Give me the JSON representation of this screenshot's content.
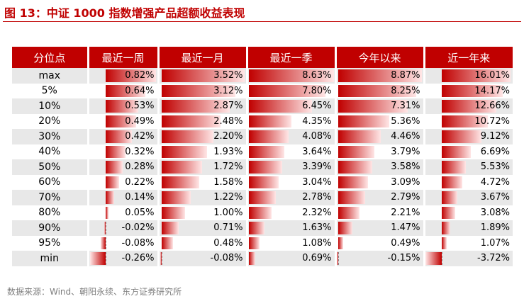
{
  "figure": {
    "title": "图 13：中证 1000 指数增强产品超额收益表现",
    "source": "数据来源：Wind、朝阳永续、东方证券研究所"
  },
  "table": {
    "corner_header": "分位点",
    "columns": [
      {
        "key": "week",
        "header": "最近一周",
        "min": -0.26,
        "max": 0.82
      },
      {
        "key": "month",
        "header": "最近一月",
        "min": -0.08,
        "max": 3.52
      },
      {
        "key": "season",
        "header": "最近一季",
        "min": 0.69,
        "max": 8.63
      },
      {
        "key": "ytd",
        "header": "今年以来",
        "min": -0.15,
        "max": 8.87
      },
      {
        "key": "year",
        "header": "近一年来",
        "min": -3.72,
        "max": 16.01
      }
    ],
    "rows": [
      {
        "label": "max",
        "values": [
          "0.82%",
          "3.52%",
          "8.63%",
          "8.87%",
          "16.01%"
        ],
        "numbers": [
          0.82,
          3.52,
          8.63,
          8.87,
          16.01
        ]
      },
      {
        "label": "5%",
        "values": [
          "0.64%",
          "3.12%",
          "7.80%",
          "8.25%",
          "14.17%"
        ],
        "numbers": [
          0.64,
          3.12,
          7.8,
          8.25,
          14.17
        ]
      },
      {
        "label": "10%",
        "values": [
          "0.53%",
          "2.87%",
          "6.45%",
          "7.31%",
          "12.66%"
        ],
        "numbers": [
          0.53,
          2.87,
          6.45,
          7.31,
          12.66
        ]
      },
      {
        "label": "20%",
        "values": [
          "0.49%",
          "2.48%",
          "4.35%",
          "5.36%",
          "10.72%"
        ],
        "numbers": [
          0.49,
          2.48,
          4.35,
          5.36,
          10.72
        ]
      },
      {
        "label": "30%",
        "values": [
          "0.42%",
          "2.20%",
          "4.08%",
          "4.46%",
          "9.12%"
        ],
        "numbers": [
          0.42,
          2.2,
          4.08,
          4.46,
          9.12
        ]
      },
      {
        "label": "40%",
        "values": [
          "0.32%",
          "1.93%",
          "3.64%",
          "3.79%",
          "6.69%"
        ],
        "numbers": [
          0.32,
          1.93,
          3.64,
          3.79,
          6.69
        ]
      },
      {
        "label": "50%",
        "values": [
          "0.28%",
          "1.72%",
          "3.39%",
          "3.58%",
          "5.53%"
        ],
        "numbers": [
          0.28,
          1.72,
          3.39,
          3.58,
          5.53
        ]
      },
      {
        "label": "60%",
        "values": [
          "0.22%",
          "1.58%",
          "3.04%",
          "3.09%",
          "4.72%"
        ],
        "numbers": [
          0.22,
          1.58,
          3.04,
          3.09,
          4.72
        ]
      },
      {
        "label": "70%",
        "values": [
          "0.14%",
          "1.22%",
          "2.78%",
          "2.79%",
          "3.67%"
        ],
        "numbers": [
          0.14,
          1.22,
          2.78,
          2.79,
          3.67
        ]
      },
      {
        "label": "80%",
        "values": [
          "0.05%",
          "1.00%",
          "2.32%",
          "2.21%",
          "3.08%"
        ],
        "numbers": [
          0.05,
          1.0,
          2.32,
          2.21,
          3.08
        ]
      },
      {
        "label": "90%",
        "values": [
          "-0.02%",
          "0.71%",
          "1.63%",
          "1.47%",
          "1.89%"
        ],
        "numbers": [
          -0.02,
          0.71,
          1.63,
          1.47,
          1.89
        ]
      },
      {
        "label": "95%",
        "values": [
          "-0.08%",
          "0.48%",
          "1.08%",
          "0.49%",
          "1.07%"
        ],
        "numbers": [
          -0.08,
          0.48,
          1.08,
          0.49,
          1.07
        ]
      },
      {
        "label": "min",
        "values": [
          "-0.26%",
          "-0.08%",
          "0.69%",
          "-0.15%",
          "-3.72%"
        ],
        "numbers": [
          -0.26,
          -0.08,
          0.69,
          -0.15,
          -3.72
        ]
      }
    ]
  },
  "colors": {
    "accent": "#c00000",
    "stripe": "#e8e8e8",
    "bar_fade": "#ffe6e6"
  }
}
